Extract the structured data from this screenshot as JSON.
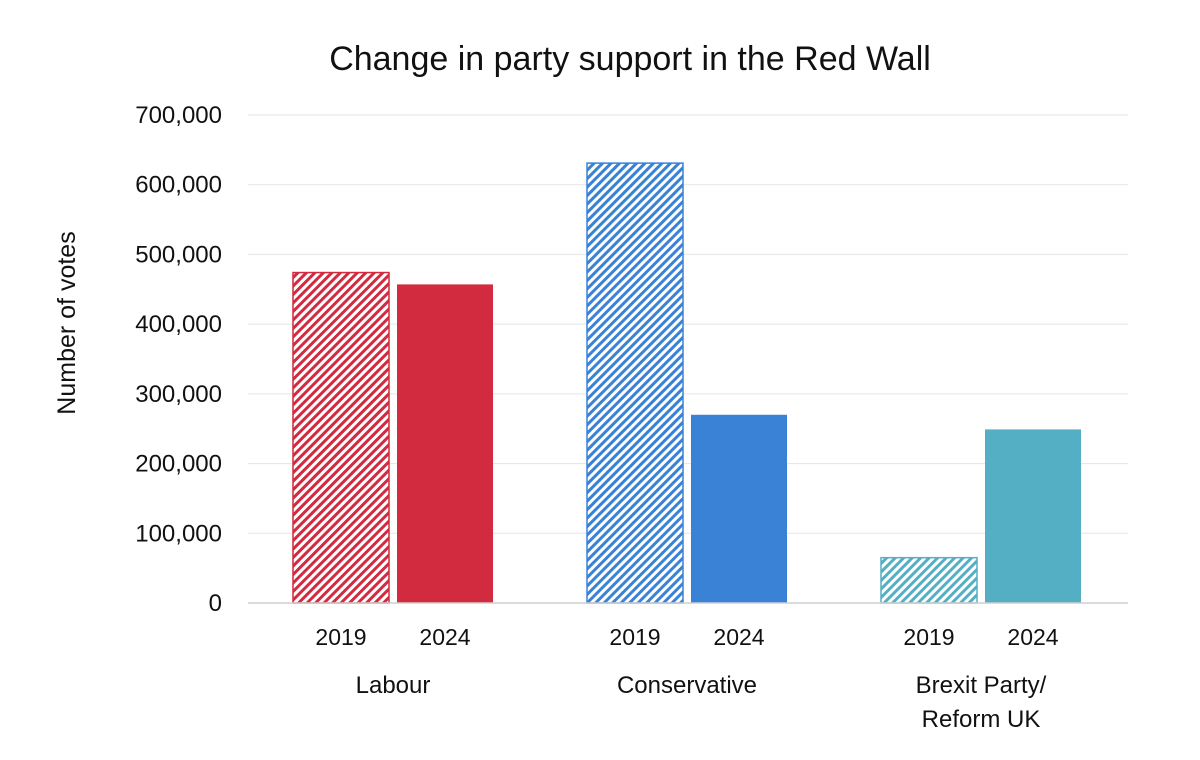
{
  "chart_data": {
    "type": "bar",
    "title": "Change in party support in the Red Wall",
    "xlabel": "",
    "ylabel": "Number of votes",
    "ylim": [
      0,
      700000
    ],
    "yticks": [
      0,
      100000,
      200000,
      300000,
      400000,
      500000,
      600000,
      700000
    ],
    "ytick_labels": [
      "0",
      "100,000",
      "200,000",
      "300,000",
      "400,000",
      "500,000",
      "600,000",
      "700,000"
    ],
    "grid": true,
    "legend": "none",
    "groups": [
      {
        "label": [
          "Labour"
        ],
        "bars": [
          {
            "year": "2019",
            "value": 474000,
            "style": "hatched",
            "color": "#d22a3e"
          },
          {
            "year": "2024",
            "value": 457000,
            "style": "solid",
            "color": "#d22a3e"
          }
        ]
      },
      {
        "label": [
          "Conservative"
        ],
        "bars": [
          {
            "year": "2019",
            "value": 631000,
            "style": "hatched",
            "color": "#3a82d6"
          },
          {
            "year": "2024",
            "value": 270000,
            "style": "solid",
            "color": "#3a82d6"
          }
        ]
      },
      {
        "label": [
          "Brexit Party/",
          "Reform UK"
        ],
        "bars": [
          {
            "year": "2019",
            "value": 65000,
            "style": "hatched",
            "color": "#55afc4"
          },
          {
            "year": "2024",
            "value": 249000,
            "style": "solid",
            "color": "#55afc4"
          }
        ]
      }
    ]
  }
}
